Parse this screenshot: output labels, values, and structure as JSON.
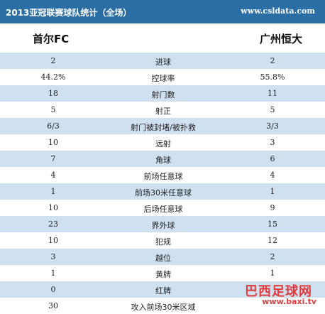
{
  "header": {
    "title": "2013亚冠联赛球队统计（全场）",
    "site": "www.csldata.com"
  },
  "teams": {
    "left": "首尔FC",
    "right": "广州恒大"
  },
  "stats": [
    {
      "left": "2",
      "label": "进球",
      "right": "2"
    },
    {
      "left": "44.2%",
      "label": "控球率",
      "right": "55.8%"
    },
    {
      "left": "18",
      "label": "射门数",
      "right": "11"
    },
    {
      "left": "5",
      "label": "射正",
      "right": "5"
    },
    {
      "left": "6/3",
      "label": "射门被封堵/被扑救",
      "right": "3/3"
    },
    {
      "left": "10",
      "label": "远射",
      "right": "3"
    },
    {
      "left": "7",
      "label": "角球",
      "right": "6"
    },
    {
      "left": "4",
      "label": "前场任意球",
      "right": "4"
    },
    {
      "left": "1",
      "label": "前场30米任意球",
      "right": "1"
    },
    {
      "left": "10",
      "label": "后场任意球",
      "right": "9"
    },
    {
      "left": "23",
      "label": "界外球",
      "right": "15"
    },
    {
      "left": "10",
      "label": "犯规",
      "right": "12"
    },
    {
      "left": "3",
      "label": "越位",
      "right": "2"
    },
    {
      "left": "1",
      "label": "黄牌",
      "right": "1"
    },
    {
      "left": "0",
      "label": "红牌",
      "right": ""
    },
    {
      "left": "30",
      "label": "攻入前场30米区域",
      "right": ""
    }
  ],
  "watermark": {
    "title": "巴西足球网",
    "url": "www.baxi.tv"
  }
}
